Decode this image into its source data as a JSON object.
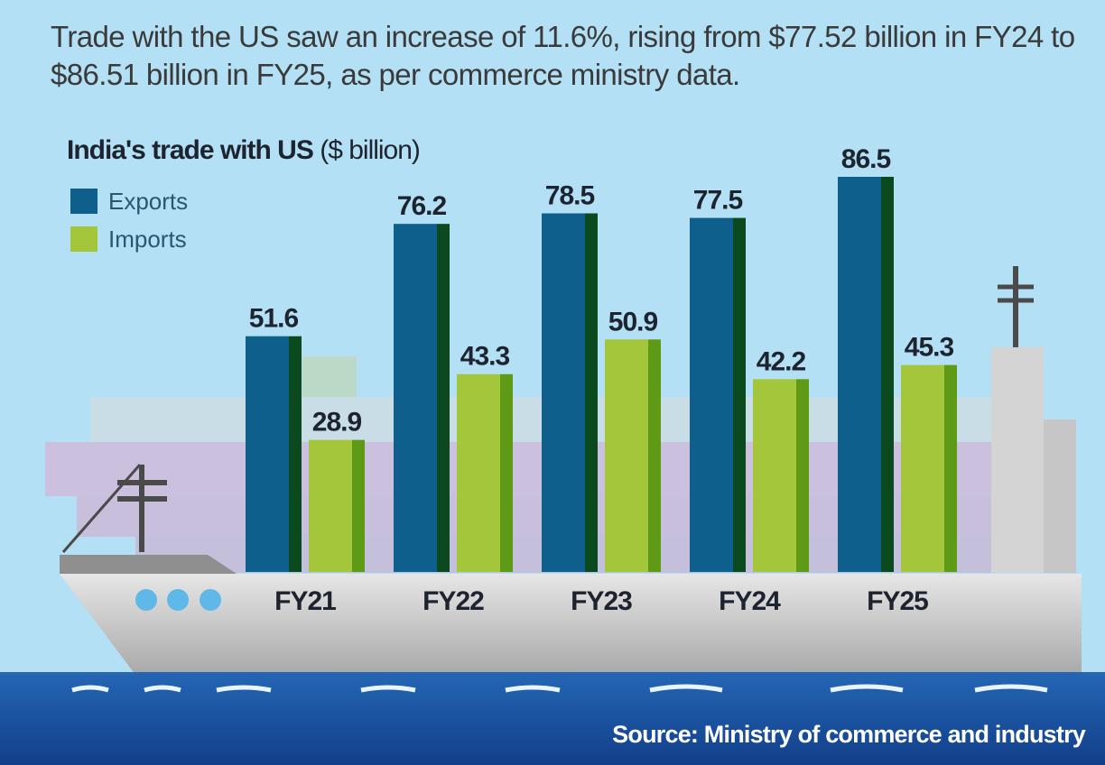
{
  "headline": "Trade with the US saw an increase of 11.6%, rising from $77.52 billion in FY24 to $86.51 billion in FY25, as per commerce ministry data.",
  "chart_data": {
    "type": "bar",
    "title": "India's trade with US",
    "unit": "($ billion)",
    "categories": [
      "FY21",
      "FY22",
      "FY23",
      "FY24",
      "FY25"
    ],
    "series": [
      {
        "name": "Exports",
        "values": [
          51.6,
          76.2,
          78.5,
          77.5,
          86.5
        ],
        "color": "#0e5f8c",
        "edge": "#0b4a1f"
      },
      {
        "name": "Imports",
        "values": [
          28.9,
          43.3,
          50.9,
          42.2,
          45.3
        ],
        "color": "#a3c63a",
        "edge": "#5f9a17"
      }
    ],
    "ylim": [
      0,
      86.5
    ],
    "legend": "top-left",
    "grid": false
  },
  "source": "Source: Ministry of commerce and industry",
  "colors": {
    "background": "#b3e0f4",
    "sea": "#1d5aa8",
    "hull": "#d8d8d8"
  }
}
